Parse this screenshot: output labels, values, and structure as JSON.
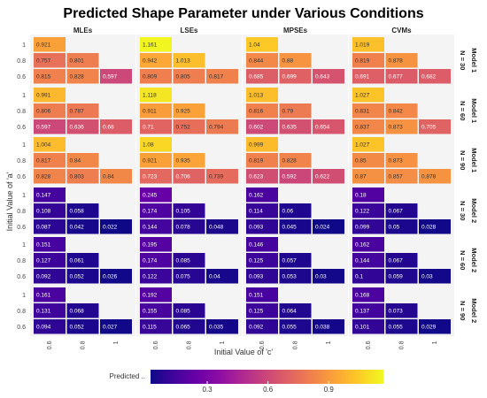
{
  "chart_data": {
    "type": "heatmap",
    "title": "Predicted Shape Parameter under Various Conditions",
    "xlabel": "Initial Value of 'c'",
    "ylabel": "Initial Value of 'a'",
    "x_categories": [
      "0.6",
      "0.8",
      "1"
    ],
    "y_categories": [
      "1",
      "0.8",
      "0.6"
    ],
    "methods": [
      "MLEs",
      "LSEs",
      "MPSEs",
      "CVMs"
    ],
    "panel_rows": [
      {
        "model": "Model 1",
        "n": "N = 30"
      },
      {
        "model": "Model 1",
        "n": "N = 60"
      },
      {
        "model": "Model 1",
        "n": "N = 90"
      },
      {
        "model": "Model 2",
        "n": "N = 30"
      },
      {
        "model": "Model 2",
        "n": "N = 60"
      },
      {
        "model": "Model 2",
        "n": "N = 90"
      }
    ],
    "legend": {
      "title": "Predicted ..",
      "ticks": [
        "0.3",
        "0.6",
        "0.9"
      ],
      "range": [
        0.02,
        1.17
      ],
      "position": "bottom"
    },
    "color_scale": [
      "#0d0887",
      "#41049d",
      "#6a00a8",
      "#8f0da4",
      "#b12a90",
      "#cc4778",
      "#e16462",
      "#f1834b",
      "#fca636",
      "#fcce25",
      "#f0f921"
    ],
    "panels": [
      [
        [
          [
            "0.921",
            null,
            null
          ],
          [
            "0.757",
            "0.801",
            null
          ],
          [
            "0.815",
            "0.828",
            "0.597"
          ]
        ],
        [
          [
            "1.161",
            null,
            null
          ],
          [
            "0.942",
            "1.013",
            null
          ],
          [
            "0.809",
            "0.805",
            "0.817"
          ]
        ],
        [
          [
            "1.04",
            null,
            null
          ],
          [
            "0.844",
            "0.88",
            null
          ],
          [
            "0.685",
            "0.699",
            "0.643"
          ]
        ],
        [
          [
            "1.019",
            null,
            null
          ],
          [
            "0.819",
            "0.878",
            null
          ],
          [
            "0.691",
            "0.677",
            "0.682"
          ]
        ]
      ],
      [
        [
          [
            "0.991",
            null,
            null
          ],
          [
            "0.806",
            "0.787",
            null
          ],
          [
            "0.597",
            "0.636",
            "0.68"
          ]
        ],
        [
          [
            "1.118",
            null,
            null
          ],
          [
            "0.911",
            "0.925",
            null
          ],
          [
            "0.71",
            "0.752",
            "0.794"
          ]
        ],
        [
          [
            "1.013",
            null,
            null
          ],
          [
            "0.816",
            "0.79",
            null
          ],
          [
            "0.602",
            "0.635",
            "0.654"
          ]
        ],
        [
          [
            "1.027",
            null,
            null
          ],
          [
            "0.831",
            "0.842",
            null
          ],
          [
            "0.837",
            "0.873",
            "0.705"
          ]
        ]
      ],
      [
        [
          [
            "1.004",
            null,
            null
          ],
          [
            "0.817",
            "0.84",
            null
          ],
          [
            "0.828",
            "0.803",
            "0.84"
          ]
        ],
        [
          [
            "1.08",
            null,
            null
          ],
          [
            "0.921",
            "0.935",
            null
          ],
          [
            "0.723",
            "0.706",
            "0.739"
          ]
        ],
        [
          [
            "0.999",
            null,
            null
          ],
          [
            "0.819",
            "0.828",
            null
          ],
          [
            "0.623",
            "0.592",
            "0.622"
          ]
        ],
        [
          [
            "1.027",
            null,
            null
          ],
          [
            "0.85",
            "0.873",
            null
          ],
          [
            "0.87",
            "0.857",
            "0.878"
          ]
        ]
      ],
      [
        [
          [
            "0.147",
            null,
            null
          ],
          [
            "0.108",
            "0.058",
            null
          ],
          [
            "0.087",
            "0.042",
            "0.022"
          ]
        ],
        [
          [
            "0.245",
            null,
            null
          ],
          [
            "0.174",
            "0.105",
            null
          ],
          [
            "0.144",
            "0.078",
            "0.048"
          ]
        ],
        [
          [
            "0.162",
            null,
            null
          ],
          [
            "0.114",
            "0.06",
            null
          ],
          [
            "0.093",
            "0.045",
            "0.024"
          ]
        ],
        [
          [
            "0.18",
            null,
            null
          ],
          [
            "0.122",
            "0.067",
            null
          ],
          [
            "0.099",
            "0.05",
            "0.028"
          ]
        ]
      ],
      [
        [
          [
            "0.151",
            null,
            null
          ],
          [
            "0.127",
            "0.061",
            null
          ],
          [
            "0.092",
            "0.052",
            "0.026"
          ]
        ],
        [
          [
            "0.195",
            null,
            null
          ],
          [
            "0.174",
            "0.085",
            null
          ],
          [
            "0.122",
            "0.075",
            "0.04"
          ]
        ],
        [
          [
            "0.146",
            null,
            null
          ],
          [
            "0.125",
            "0.057",
            null
          ],
          [
            "0.093",
            "0.053",
            "0.03"
          ]
        ],
        [
          [
            "0.162",
            null,
            null
          ],
          [
            "0.144",
            "0.067",
            null
          ],
          [
            "0.1",
            "0.059",
            "0.03"
          ]
        ]
      ],
      [
        [
          [
            "0.161",
            null,
            null
          ],
          [
            "0.131",
            "0.068",
            null
          ],
          [
            "0.094",
            "0.052",
            "0.027"
          ]
        ],
        [
          [
            "0.192",
            null,
            null
          ],
          [
            "0.155",
            "0.085",
            null
          ],
          [
            "0.115",
            "0.065",
            "0.035"
          ]
        ],
        [
          [
            "0.151",
            null,
            null
          ],
          [
            "0.125",
            "0.064",
            null
          ],
          [
            "0.092",
            "0.055",
            "0.038"
          ]
        ],
        [
          [
            "0.168",
            null,
            null
          ],
          [
            "0.137",
            "0.073",
            null
          ],
          [
            "0.101",
            "0.055",
            "0.029"
          ]
        ]
      ]
    ]
  }
}
